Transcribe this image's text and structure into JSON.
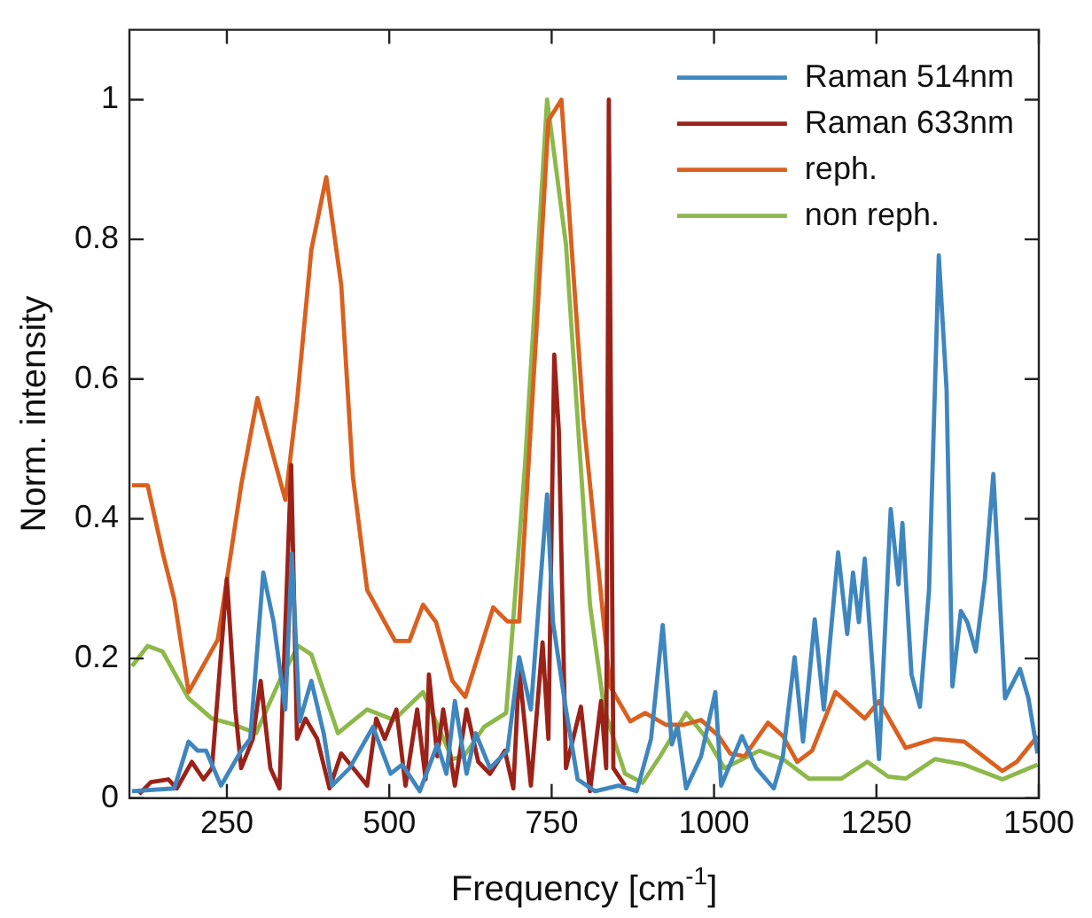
{
  "chart_data": {
    "type": "line",
    "xlabel": "Frequency [cm$^{-1}$]",
    "ylabel": "Norm. intensity",
    "xlim": [
      100,
      1500
    ],
    "ylim": [
      0,
      1.1
    ],
    "xticks": [
      250,
      500,
      750,
      1000,
      1250,
      1500
    ],
    "yticks": [
      0,
      0.2,
      0.4,
      0.6,
      0.8,
      1
    ],
    "grid": false,
    "legend": "top right",
    "marker": "none",
    "line_style": "solid",
    "series": [
      {
        "name": "Raman 514nm",
        "color": "#3f86bf",
        "x": [
          104,
          169,
          191,
          205,
          218,
          241,
          272,
          286,
          306,
          322,
          340,
          350,
          362,
          380,
          399,
          412,
          439,
          475,
          502,
          520,
          547,
          574,
          588,
          601,
          619,
          633,
          655,
          682,
          700,
          718,
          743,
          752,
          772,
          790,
          817,
          853,
          881,
          903,
          921,
          935,
          944,
          957,
          980,
          1002,
          1011,
          1043,
          1065,
          1092,
          1106,
          1124,
          1137,
          1155,
          1169,
          1191,
          1205,
          1214,
          1223,
          1232,
          1254,
          1272,
          1284,
          1290,
          1304,
          1317,
          1331,
          1346,
          1358,
          1367,
          1380,
          1390,
          1403,
          1417,
          1430,
          1448,
          1471,
          1484,
          1498
        ],
        "values": [
          0.01,
          0.014,
          0.081,
          0.068,
          0.068,
          0.018,
          0.068,
          0.085,
          0.323,
          0.252,
          0.127,
          0.35,
          0.11,
          0.168,
          0.093,
          0.018,
          0.043,
          0.102,
          0.035,
          0.048,
          0.01,
          0.077,
          0.035,
          0.139,
          0.035,
          0.093,
          0.043,
          0.068,
          0.202,
          0.127,
          0.435,
          0.252,
          0.127,
          0.027,
          0.01,
          0.018,
          0.01,
          0.085,
          0.248,
          0.077,
          0.102,
          0.014,
          0.06,
          0.152,
          0.018,
          0.089,
          0.043,
          0.014,
          0.06,
          0.202,
          0.081,
          0.256,
          0.127,
          0.352,
          0.235,
          0.323,
          0.252,
          0.343,
          0.056,
          0.414,
          0.306,
          0.394,
          0.177,
          0.131,
          0.298,
          0.777,
          0.585,
          0.16,
          0.268,
          0.252,
          0.21,
          0.314,
          0.464,
          0.143,
          0.185,
          0.143,
          0.064
        ]
      },
      {
        "name": "Raman 633nm",
        "color": "#9b2218",
        "x": [
          115,
          133,
          160,
          173,
          196,
          214,
          227,
          250,
          263,
          272,
          290,
          302,
          317,
          331,
          349,
          358,
          371,
          389,
          408,
          426,
          448,
          466,
          480,
          493,
          511,
          525,
          543,
          556,
          561,
          574,
          583,
          601,
          619,
          637,
          655,
          678,
          691,
          700,
          718,
          736,
          745,
          754,
          761,
          772,
          795,
          809,
          826,
          834,
          838,
          845,
          863
        ],
        "values": [
          0.006,
          0.023,
          0.027,
          0.014,
          0.052,
          0.027,
          0.043,
          0.314,
          0.127,
          0.043,
          0.085,
          0.168,
          0.043,
          0.014,
          0.477,
          0.085,
          0.114,
          0.085,
          0.014,
          0.064,
          0.039,
          0.018,
          0.114,
          0.085,
          0.127,
          0.018,
          0.127,
          0.027,
          0.177,
          0.06,
          0.127,
          0.018,
          0.127,
          0.052,
          0.035,
          0.068,
          0.014,
          0.185,
          0.018,
          0.223,
          0.085,
          0.635,
          0.527,
          0.043,
          0.131,
          0.01,
          0.139,
          0.043,
          1,
          0.043,
          0.018
        ]
      },
      {
        "name": "reph.",
        "color": "#d9601f",
        "x": [
          104,
          128,
          151,
          169,
          191,
          236,
          272,
          297,
          340,
          358,
          380,
          403,
          426,
          444,
          466,
          509,
          531,
          552,
          572,
          597,
          617,
          660,
          682,
          700,
          726,
          745,
          765,
          799,
          840,
          871,
          894,
          926,
          953,
          980,
          1007,
          1025,
          1047,
          1083,
          1106,
          1128,
          1151,
          1187,
          1232,
          1254,
          1295,
          1340,
          1385,
          1444,
          1466,
          1498
        ],
        "values": [
          0.448,
          0.448,
          0.352,
          0.285,
          0.152,
          0.227,
          0.448,
          0.573,
          0.427,
          0.568,
          0.785,
          0.889,
          0.735,
          0.46,
          0.298,
          0.225,
          0.225,
          0.277,
          0.252,
          0.168,
          0.145,
          0.273,
          0.253,
          0.253,
          0.66,
          0.97,
          1,
          0.543,
          0.16,
          0.11,
          0.122,
          0.105,
          0.105,
          0.112,
          0.089,
          0.064,
          0.06,
          0.108,
          0.089,
          0.052,
          0.068,
          0.152,
          0.114,
          0.139,
          0.072,
          0.085,
          0.081,
          0.039,
          0.052,
          0.089
        ]
      },
      {
        "name": "non reph.",
        "color": "#8db84a",
        "x": [
          104,
          128,
          151,
          191,
          227,
          259,
          295,
          331,
          360,
          380,
          421,
          466,
          507,
          552,
          597,
          615,
          646,
          680,
          709,
          743,
          772,
          809,
          831,
          863,
          890,
          917,
          957,
          989,
          1016,
          1070,
          1106,
          1146,
          1196,
          1236,
          1268,
          1295,
          1340,
          1385,
          1444,
          1498
        ],
        "values": [
          0.189,
          0.218,
          0.21,
          0.143,
          0.114,
          0.106,
          0.093,
          0.168,
          0.218,
          0.206,
          0.093,
          0.127,
          0.112,
          0.152,
          0.056,
          0.06,
          0.102,
          0.122,
          0.477,
          1,
          0.793,
          0.277,
          0.127,
          0.035,
          0.022,
          0.06,
          0.122,
          0.085,
          0.043,
          0.068,
          0.056,
          0.028,
          0.028,
          0.052,
          0.031,
          0.028,
          0.056,
          0.048,
          0.027,
          0.048
        ]
      }
    ]
  }
}
